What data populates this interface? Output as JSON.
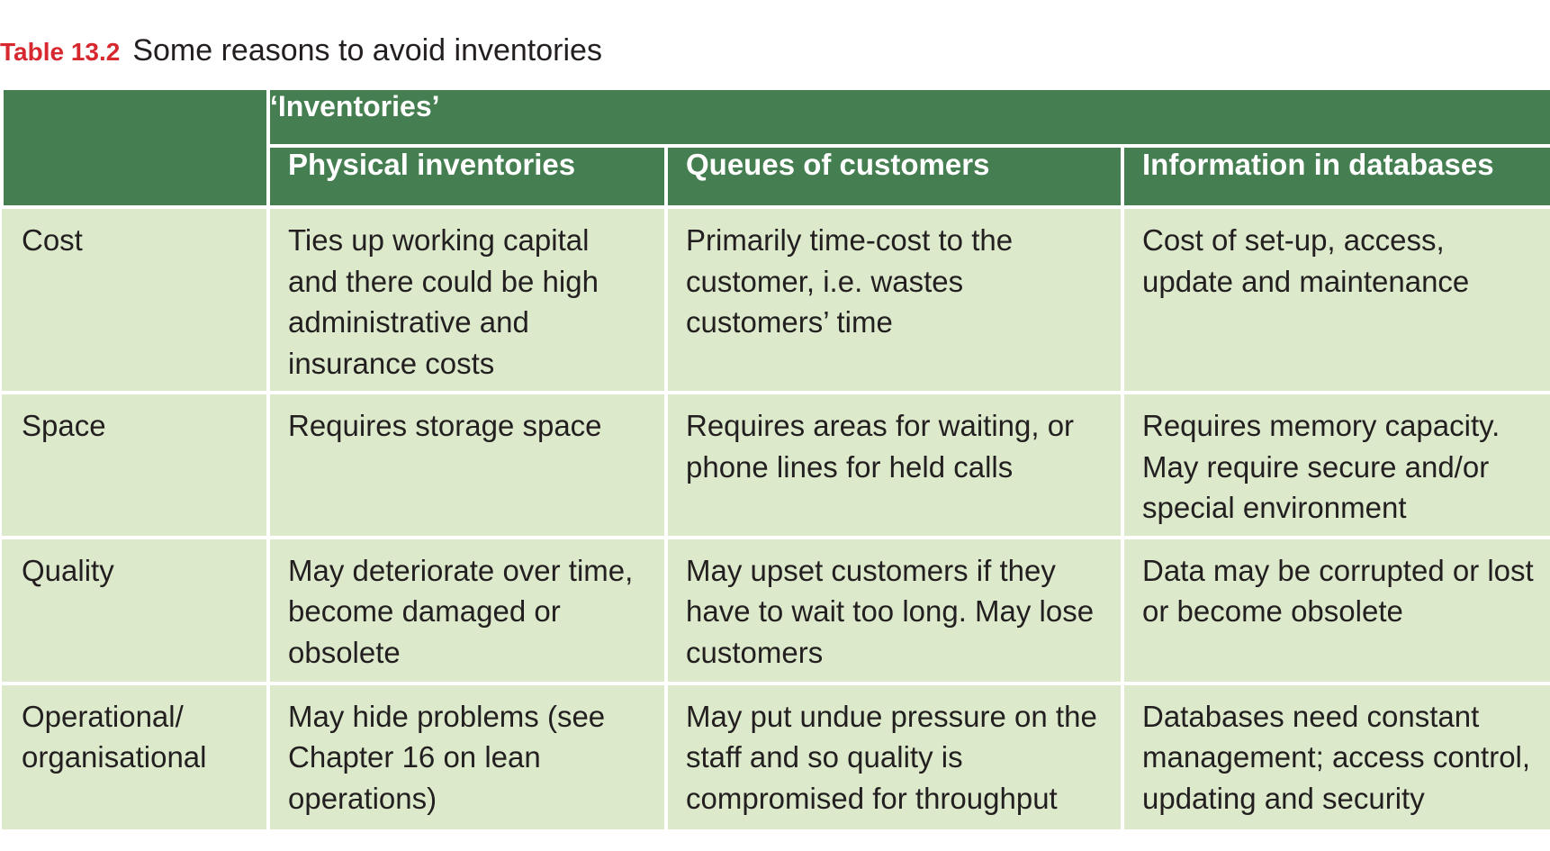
{
  "caption": {
    "label": "Table 13.2",
    "title": "Some reasons to avoid inventories"
  },
  "table": {
    "group_header": "‘Inventories’",
    "columns": [
      "Physical inventories",
      "Queues of customers",
      "Information in databases"
    ],
    "rows": [
      {
        "label": "Cost",
        "cells": [
          "Ties up working capital and there could be high administrative and insurance costs",
          "Primarily time-cost to the customer, i.e. wastes customers’ time",
          "Cost of set-up, access, update and maintenance"
        ]
      },
      {
        "label": "Space",
        "cells": [
          "Requires storage space",
          "Requires areas for waiting, or phone lines for held calls",
          "Requires memory capacity. May require secure and/or special environment"
        ]
      },
      {
        "label": "Quality",
        "cells": [
          "May deteriorate over time, become damaged or obsolete",
          "May upset customers if they have to wait too long. May lose customers",
          "Data may be corrupted or lost or become obsolete"
        ]
      },
      {
        "label": "Operational/ organisational",
        "cells": [
          "May hide problems (see Chapter 16 on lean operations)",
          "May put undue pressure on the staff and so quality is compromised for throughput",
          "Databases need constant management; access control, updating and security"
        ]
      }
    ]
  },
  "colors": {
    "header_bg": "#457f51",
    "body_bg": "#dceacb",
    "caption_label": "#d7282f"
  }
}
